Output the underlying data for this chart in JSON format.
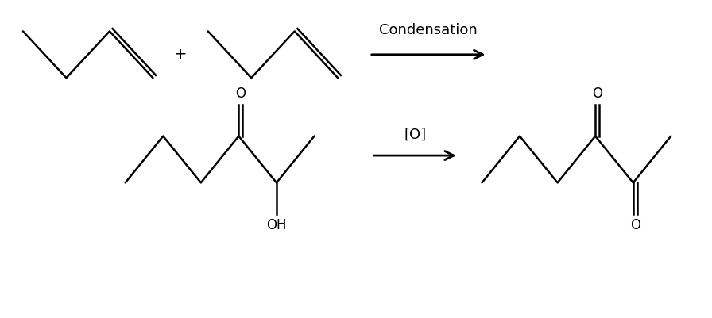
{
  "background_color": "#ffffff",
  "line_color": "#000000",
  "line_width": 1.8,
  "condensation_label": "Condensation",
  "oxidation_label": "[O]",
  "oh_label": "OH",
  "o_label": "O",
  "plus_label": "+",
  "font_size_reaction": 13,
  "font_size_label": 12,
  "fig_width": 8.96,
  "fig_height": 4.01,
  "dpi": 100
}
